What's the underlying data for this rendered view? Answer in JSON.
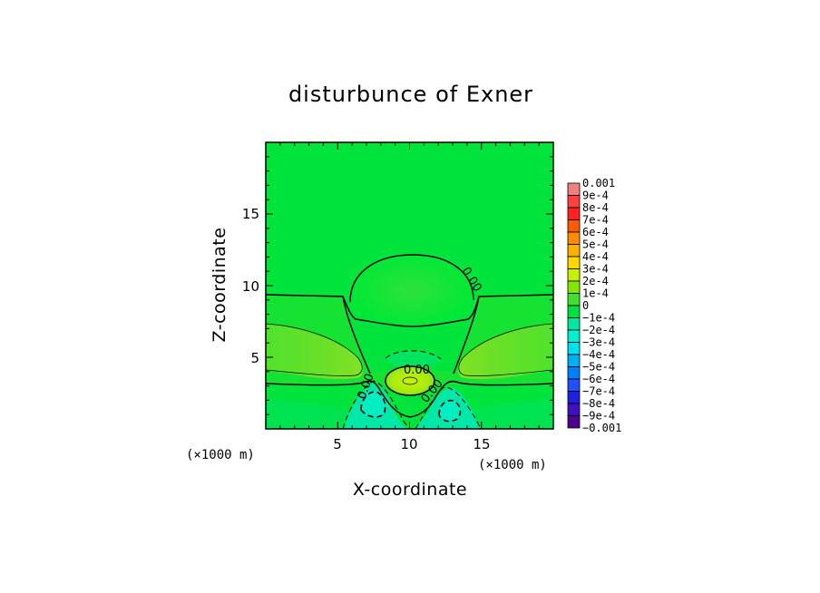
{
  "chart_data": {
    "type": "heatmap",
    "title": "disturbunce of Exner",
    "xlabel": "X-coordinate",
    "ylabel": "Z-coordinate",
    "x_unit": "(×1000 m)",
    "y_unit": "(×1000 m)",
    "xlim": [
      0,
      20
    ],
    "ylim": [
      0,
      20
    ],
    "x_ticks": [
      5,
      10,
      15
    ],
    "y_ticks": [
      5,
      10,
      15
    ],
    "colorbar": {
      "labels": [
        "0.001",
        "9e-4",
        "8e-4",
        "7e-4",
        "6e-4",
        "5e-4",
        "4e-4",
        "3e-4",
        "2e-4",
        "1e-4",
        "0",
        "−1e-4",
        "−2e-4",
        "−3e-4",
        "−4e-4",
        "−5e-4",
        "−6e-4",
        "−7e-4",
        "−8e-4",
        "−9e-4",
        "−0.001"
      ],
      "colors": [
        "#f08080",
        "#ff4040",
        "#ff2020",
        "#ff5a00",
        "#ff8c00",
        "#ffb000",
        "#ffd800",
        "#c8f000",
        "#80e800",
        "#40e030",
        "#00e040",
        "#00e8a0",
        "#00f0d0",
        "#00e0f0",
        "#00b0f0",
        "#0080ff",
        "#2050ff",
        "#2020e0",
        "#4010c0",
        "#500090"
      ]
    },
    "contour_labels": [
      "0.00",
      "0.00",
      "0.00",
      "0.00"
    ],
    "features": [
      {
        "name": "upper positive dome",
        "center": [
          10,
          10
        ],
        "level": "1e-4"
      },
      {
        "name": "left lobe",
        "center": [
          4,
          5
        ],
        "level": "2e-4"
      },
      {
        "name": "right lobe",
        "center": [
          16,
          5
        ],
        "level": "2e-4"
      },
      {
        "name": "core maximum",
        "center": [
          10,
          3.3
        ],
        "level": "4e-4"
      },
      {
        "name": "negative region left",
        "center": [
          7.5,
          2
        ],
        "level": "−2e-4"
      },
      {
        "name": "negative region right",
        "center": [
          12.8,
          2
        ],
        "level": "−2e-4"
      }
    ]
  }
}
